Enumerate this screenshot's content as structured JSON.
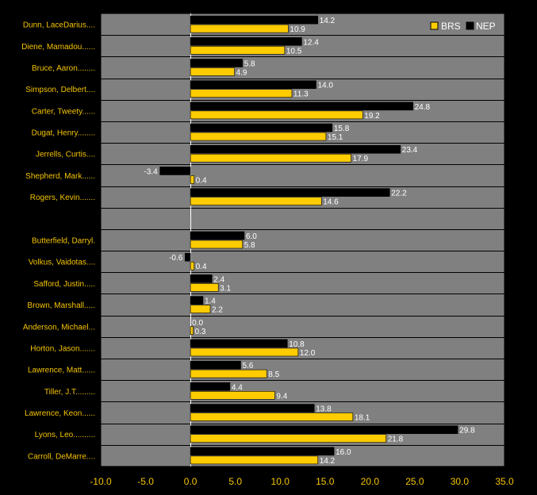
{
  "chart_data": {
    "type": "bar",
    "orientation": "horizontal",
    "title": "",
    "xlabel": "",
    "ylabel": "",
    "xlim": [
      -10,
      35
    ],
    "xticks": [
      "-10.0",
      "-5.0",
      "0.0",
      "5.0",
      "10.0",
      "15.0",
      "20.0",
      "25.0",
      "30.0",
      "35.0"
    ],
    "grid": "horizontal category separators",
    "legend_position": "top-right",
    "colors": {
      "background": "#000000",
      "plot_area": "#808080",
      "BRS": "#FFCC00",
      "NEP": "#000000",
      "label": "#F5C400",
      "value_label": "#FFFFFF"
    },
    "categories": [
      "Dunn, LaceDarius....",
      "Diene, Mamadou......",
      "Bruce, Aaron........",
      "Simpson, Delbert....",
      "Carter, Tweety......",
      "Dugat, Henry........",
      "Jerrells, Curtis....",
      "Shepherd, Mark......",
      "Rogers, Kevin.......",
      "",
      "Butterfield, Darryl.",
      "Volkus, Vaidotas....",
      "Safford, Justin.....",
      "Brown, Marshall.....",
      "Anderson, Michael...",
      "Horton, Jason.......",
      "Lawrence, Matt......",
      "Tiller, J.T.........",
      "Lawrence, Keon......",
      "Lyons, Leo..........",
      "Carroll, DeMarre...."
    ],
    "series": [
      {
        "name": "NEP",
        "values": [
          14.2,
          12.4,
          5.8,
          14.0,
          24.8,
          15.8,
          23.4,
          -3.4,
          22.2,
          null,
          6.0,
          -0.6,
          2.4,
          1.4,
          0.0,
          10.8,
          5.6,
          4.4,
          13.8,
          29.8,
          16.0
        ],
        "labels": [
          "14.2",
          "12.4",
          "5.8",
          "14.0",
          "24.8",
          "15.8",
          "23.4",
          "-3.4",
          "22.2",
          "",
          "6.0",
          "-0.6",
          "2.4",
          "1.4",
          "0.0",
          "10.8",
          "5.6",
          "4.4",
          "13.8",
          "29.8",
          "16.0"
        ]
      },
      {
        "name": "BRS",
        "values": [
          10.9,
          10.5,
          4.9,
          11.3,
          19.2,
          15.1,
          17.9,
          0.4,
          14.6,
          null,
          5.8,
          0.4,
          3.1,
          2.2,
          0.3,
          12.0,
          8.5,
          9.4,
          18.1,
          21.8,
          14.2
        ],
        "labels": [
          "10.9",
          "10.5",
          "4.9",
          "11.3",
          "19.2",
          "15.1",
          "17.9",
          "0.4",
          "14.6",
          "",
          "5.8",
          "0.4",
          "3.1",
          "2.2",
          "0.3",
          "12.0",
          "8.5",
          "9.4",
          "18.1",
          "21.8",
          "14.2"
        ]
      }
    ]
  }
}
